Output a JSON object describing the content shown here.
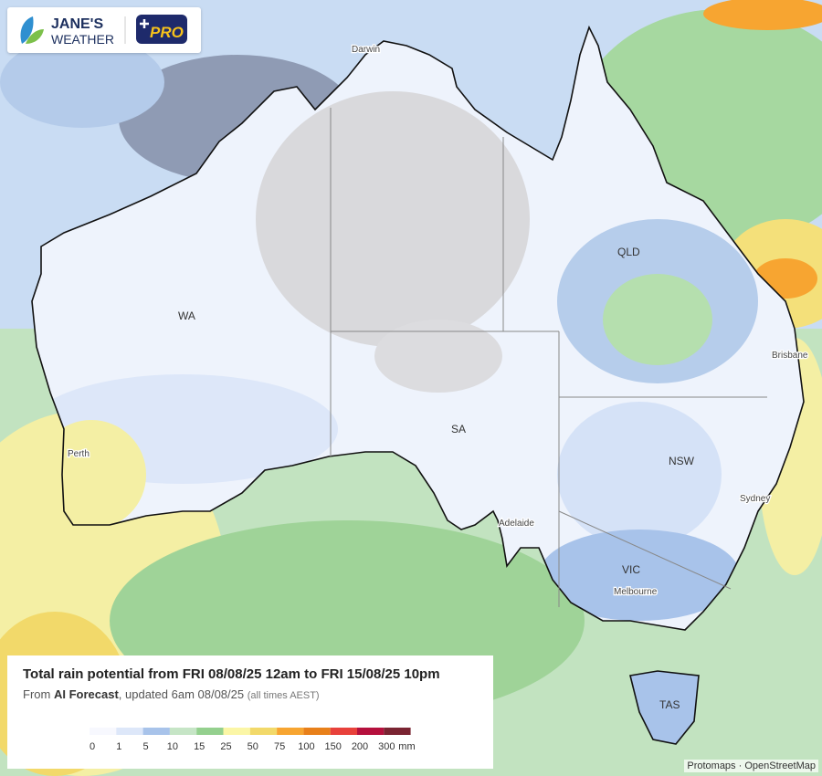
{
  "logo": {
    "brand_line1": "JANE'S",
    "brand_line2": "WEATHER",
    "badge": "PRO"
  },
  "map": {
    "regions": [
      "WA",
      "SA",
      "QLD",
      "NSW",
      "VIC",
      "TAS"
    ],
    "cities": [
      "Darwin",
      "Perth",
      "Adelaide",
      "Melbourne",
      "Brisbane",
      "Sydney"
    ]
  },
  "panel": {
    "title": "Total rain potential from FRI 08/08/25 12am to FRI 15/08/25 10pm",
    "subtitle_prefix": "From",
    "subtitle_source": "AI Forecast",
    "subtitle_updated": ", updated 6am 08/08/25",
    "subtitle_note": "(all times AEST)"
  },
  "legend": {
    "ticks": [
      0,
      1,
      5,
      10,
      15,
      25,
      50,
      75,
      100,
      150,
      200,
      300
    ],
    "unit": "mm",
    "colors": [
      "#f7f8fe",
      "#dde7f9",
      "#a8c3ea",
      "#c6e5c6",
      "#94d08e",
      "#fbf6a6",
      "#f2d96a",
      "#f7a531",
      "#e8801a",
      "#e8413b",
      "#b5103d",
      "#7a2432"
    ]
  },
  "attribution": [
    "Protomaps",
    "OpenStreetMap"
  ]
}
